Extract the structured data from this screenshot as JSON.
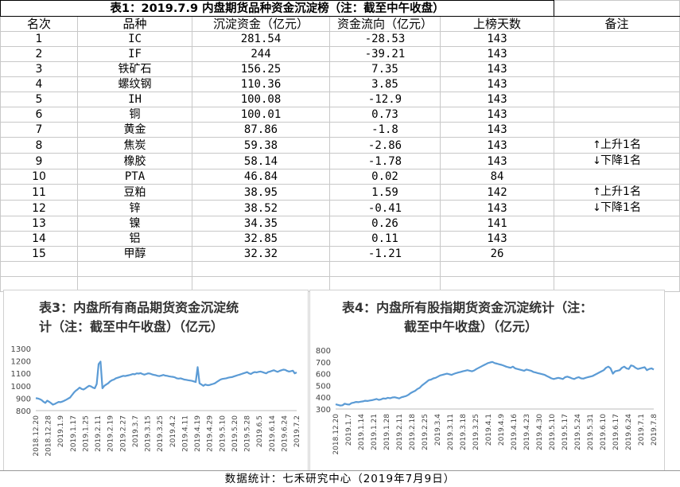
{
  "table": {
    "title": "表1：2019.7.9 内盘期货品种资金沉淀榜（注：截至中午收盘）",
    "headers": [
      "名次",
      "品种",
      "沉淀资金（亿元）",
      "资金流向（亿元）",
      "上榜天数",
      "备注"
    ],
    "rows": [
      {
        "rank": "1",
        "name": "IC",
        "capital": "281.54",
        "flow": "-28.53",
        "days": "143",
        "note": ""
      },
      {
        "rank": "2",
        "name": "IF",
        "capital": "244",
        "flow": "-39.21",
        "days": "143",
        "note": ""
      },
      {
        "rank": "3",
        "name": "铁矿石",
        "capital": "156.25",
        "flow": "7.35",
        "days": "143",
        "note": ""
      },
      {
        "rank": "4",
        "name": "螺纹钢",
        "capital": "110.36",
        "flow": "3.85",
        "days": "143",
        "note": ""
      },
      {
        "rank": "5",
        "name": "IH",
        "capital": "100.08",
        "flow": "-12.9",
        "days": "143",
        "note": ""
      },
      {
        "rank": "6",
        "name": "铜",
        "capital": "100.01",
        "flow": "0.73",
        "days": "143",
        "note": ""
      },
      {
        "rank": "7",
        "name": "黄金",
        "capital": "87.86",
        "flow": "-1.8",
        "days": "143",
        "note": ""
      },
      {
        "rank": "8",
        "name": "焦炭",
        "capital": "59.38",
        "flow": "-2.86",
        "days": "143",
        "note": "上升1名",
        "arrow": "↑"
      },
      {
        "rank": "9",
        "name": "橡胶",
        "capital": "58.14",
        "flow": "-1.78",
        "days": "143",
        "note": "下降1名",
        "arrow": "↓"
      },
      {
        "rank": "10",
        "name": "PTA",
        "capital": "46.84",
        "flow": "0.02",
        "days": "84",
        "note": ""
      },
      {
        "rank": "11",
        "name": "豆粕",
        "capital": "38.95",
        "flow": "1.59",
        "days": "142",
        "note": "上升1名",
        "arrow": "↑"
      },
      {
        "rank": "12",
        "name": "锌",
        "capital": "38.52",
        "flow": "-0.41",
        "days": "143",
        "note": "下降1名",
        "arrow": "↓"
      },
      {
        "rank": "13",
        "name": "镍",
        "capital": "34.35",
        "flow": "0.26",
        "days": "141",
        "note": ""
      },
      {
        "rank": "14",
        "name": "铝",
        "capital": "32.85",
        "flow": "0.11",
        "days": "143",
        "note": ""
      },
      {
        "rank": "15",
        "name": "甲醇",
        "capital": "32.32",
        "flow": "-1.21",
        "days": "26",
        "note": ""
      }
    ]
  },
  "chart_data": [
    {
      "type": "line",
      "title": "表3：内盘所有商品期货资金沉淀统计（注：截至中午收盘）（亿元）",
      "title_lines": [
        "表3：内盘所有商品期货资金沉淀统",
        "计（注：截至中午收盘）（亿元）"
      ],
      "ylim": [
        800,
        1300
      ],
      "yticks": [
        800,
        900,
        1000,
        1100,
        1200,
        1300
      ],
      "xticks": [
        "2018.12.20",
        "2018.12.28",
        "2019.1.9",
        "2019.1.17",
        "2019.1.25",
        "2019.2.11",
        "2019.2.19",
        "2019.2.27",
        "2019.3.7",
        "2019.3.15",
        "2019.3.25",
        "2019.4.2",
        "2019.4.11",
        "2019.4.19",
        "2019.4.29",
        "2019.5.10",
        "2019.5.20",
        "2019.5.28",
        "2019.6.5",
        "2019.6.14",
        "2019.6.24",
        "2019.7.2"
      ],
      "series": [
        {
          "values": [
            900,
            898,
            893,
            885,
            872,
            862,
            880,
            871,
            860,
            848,
            854,
            862,
            870,
            868,
            873,
            880,
            888,
            897,
            905,
            925,
            945,
            960,
            972,
            985,
            975,
            970,
            978,
            990,
            1000,
            995,
            985,
            980,
            1015,
            1175,
            1195,
            980,
            1000,
            1010,
            1020,
            1035,
            1045,
            1050,
            1060,
            1065,
            1070,
            1075,
            1080,
            1078,
            1082,
            1085,
            1090,
            1095,
            1092,
            1100,
            1098,
            1102,
            1095,
            1090,
            1095,
            1100,
            1098,
            1092,
            1088,
            1085,
            1080,
            1078,
            1083,
            1087,
            1082,
            1080,
            1076,
            1074,
            1072,
            1068,
            1060,
            1058,
            1060,
            1055,
            1050,
            1048,
            1045,
            1042,
            1040,
            1035,
            1030,
            1150,
            1020,
            1010,
            1000,
            1010,
            1005,
            1005,
            1010,
            1015,
            1020,
            1030,
            1040,
            1050,
            1055,
            1058,
            1060,
            1065,
            1068,
            1070,
            1075,
            1080,
            1085,
            1090,
            1095,
            1100,
            1105,
            1110,
            1100,
            1095,
            1105,
            1110,
            1108,
            1112,
            1115,
            1110,
            1105,
            1100,
            1110,
            1115,
            1120,
            1125,
            1118,
            1112,
            1120,
            1125,
            1130,
            1128,
            1120,
            1115,
            1118,
            1122,
            1100,
            1108
          ]
        }
      ]
    },
    {
      "type": "line",
      "title": "表4：内盘所有股指期货资金沉淀统计（注：截至中午收盘）（亿元）",
      "title_lines": [
        "表4：内盘所有股指期货资金沉淀统计（注：",
        "截至中午收盘）（亿元）"
      ],
      "ylim": [
        300,
        800
      ],
      "yticks": [
        300,
        400,
        500,
        600,
        700,
        800
      ],
      "xticks": [
        "2018.12.20",
        "2019.1.7",
        "2019.1.14",
        "2019.1.21",
        "2019.1.28",
        "2019.2.11",
        "2019.2.18",
        "2019.2.25",
        "2019.3.4",
        "2019.3.11",
        "2019.3.18",
        "2019.3.25",
        "2019.4.1",
        "2019.4.9",
        "2019.4.16",
        "2019.4.23",
        "2019.4.30",
        "2019.5.10",
        "2019.5.17",
        "2019.5.24",
        "2019.5.31",
        "2019.6.10",
        "2019.6.17",
        "2019.6.24",
        "2019.7.1",
        "2019.7.8"
      ],
      "series": [
        {
          "values": [
            340,
            335,
            330,
            332,
            345,
            340,
            338,
            350,
            355,
            360,
            358,
            362,
            365,
            370,
            368,
            372,
            375,
            380,
            385,
            378,
            382,
            390,
            388,
            395,
            392,
            398,
            400,
            395,
            390,
            400,
            405,
            410,
            420,
            435,
            445,
            455,
            470,
            480,
            500,
            515,
            530,
            545,
            550,
            560,
            565,
            575,
            585,
            590,
            595,
            600,
            595,
            590,
            598,
            605,
            610,
            615,
            620,
            625,
            630,
            625,
            620,
            628,
            640,
            650,
            660,
            670,
            680,
            690,
            695,
            700,
            690,
            685,
            680,
            675,
            668,
            660,
            655,
            650,
            660,
            645,
            640,
            635,
            630,
            625,
            635,
            630,
            625,
            615,
            610,
            605,
            600,
            595,
            590,
            580,
            570,
            560,
            555,
            560,
            565,
            560,
            555,
            570,
            575,
            568,
            560,
            555,
            565,
            570,
            560,
            558,
            565,
            570,
            575,
            580,
            590,
            600,
            610,
            620,
            630,
            650,
            660,
            645,
            600,
            620,
            625,
            630,
            650,
            660,
            645,
            640,
            670,
            665,
            650,
            640,
            645,
            650,
            655,
            630,
            640,
            645,
            635
          ]
        }
      ]
    }
  ],
  "footer": "数据统计：七禾研究中心（2019年7月9日）"
}
